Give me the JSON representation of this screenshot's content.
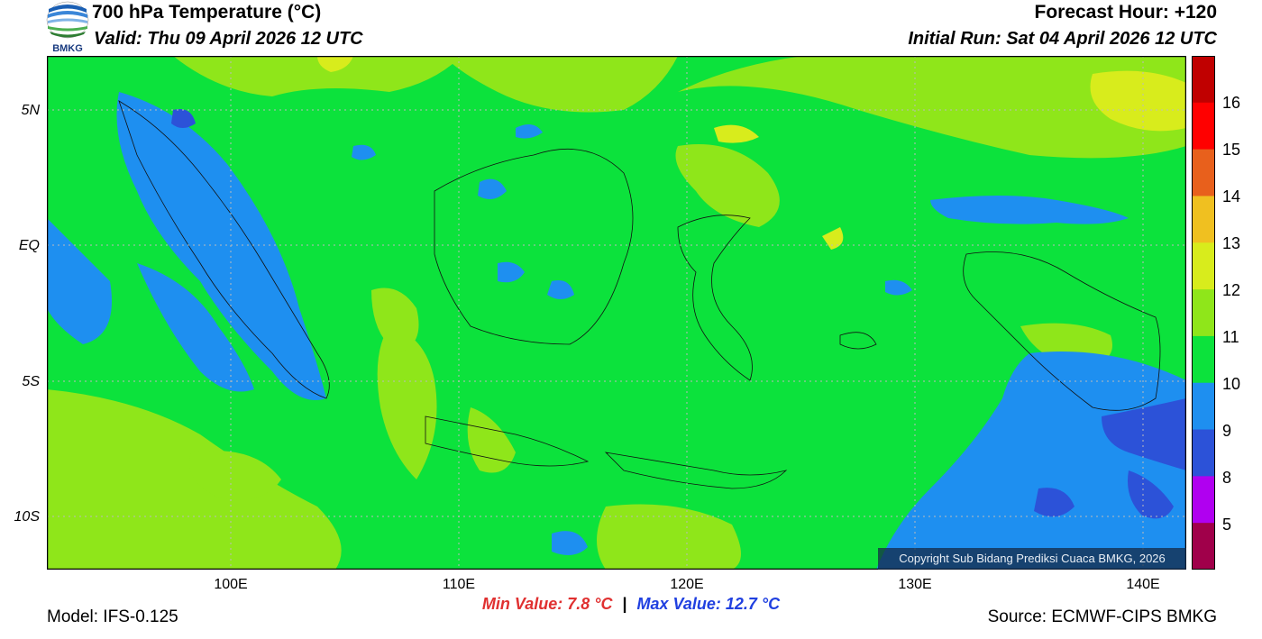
{
  "header": {
    "title": "700 hPa Temperature (°C)",
    "valid": "Valid: Thu 09 April 2026 12 UTC",
    "forecast_hour": "Forecast Hour: +120",
    "initial_run": "Initial Run: Sat 04 April 2026 12 UTC"
  },
  "logo": {
    "text": "BMKG"
  },
  "map": {
    "lat_labels": [
      "5N",
      "EQ",
      "5S",
      "10S"
    ],
    "lon_labels": [
      "100E",
      "110E",
      "120E",
      "130E",
      "140E"
    ],
    "copyright": "Copyright Sub Bidang Prediksi Cuaca BMKG, 2026"
  },
  "colorbar": {
    "labels": [
      "16",
      "15",
      "14",
      "13",
      "12",
      "11",
      "10",
      "9",
      "8",
      "5"
    ],
    "colors": [
      "#c00000",
      "#ff0000",
      "#e8601c",
      "#f0c020",
      "#d8ec1c",
      "#8fe61a",
      "#0ce23c",
      "#1e8ff0",
      "#2c52d8",
      "#b000f0",
      "#a0004a"
    ]
  },
  "stats": {
    "min": "Min Value: 7.8 °C",
    "separator": "|",
    "max": "Max Value: 12.7 °C",
    "min_color": "#e03030",
    "max_color": "#2040e0"
  },
  "footer": {
    "model": "Model: IFS-0.125",
    "source": "Source: ECMWF-CIPS BMKG"
  }
}
